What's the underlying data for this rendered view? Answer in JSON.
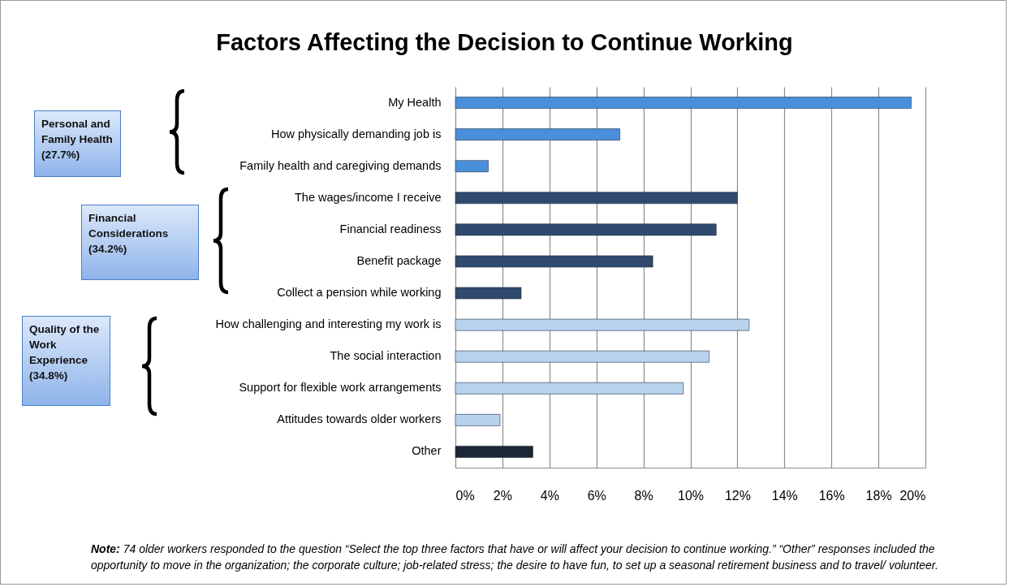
{
  "chart_data": {
    "type": "bar",
    "orientation": "horizontal",
    "title": "Factors Affecting the Decision to Continue Working",
    "categories": [
      "My Health",
      "How physically demanding job is",
      "Family health and caregiving demands",
      "The wages/income I receive",
      "Financial readiness",
      "Benefit package",
      "Collect a pension while working",
      "How challenging and interesting my work is",
      "The social interaction",
      "Support for flexible work arrangements",
      "Attitudes towards older workers",
      "Other"
    ],
    "values": [
      19.4,
      7.0,
      1.4,
      12.0,
      11.1,
      8.4,
      2.8,
      12.5,
      10.8,
      9.7,
      1.9,
      3.3
    ],
    "colors": [
      "#4a8fdb",
      "#4a8fdb",
      "#4a8fdb",
      "#2f4a6d",
      "#2f4a6d",
      "#2f4a6d",
      "#2f4a6d",
      "#b8d2ee",
      "#b8d2ee",
      "#b8d2ee",
      "#b8d2ee",
      "#1c2736"
    ],
    "xlim": [
      0,
      20
    ],
    "xticks": [
      {
        "value": 0,
        "label": "0%"
      },
      {
        "value": 2,
        "label": "2%"
      },
      {
        "value": 4,
        "label": "4%"
      },
      {
        "value": 6,
        "label": "6%"
      },
      {
        "value": 8,
        "label": "8%"
      },
      {
        "value": 10,
        "label": "10%"
      },
      {
        "value": 12,
        "label": "12%"
      },
      {
        "value": 14,
        "label": "14%"
      },
      {
        "value": 16,
        "label": "16%"
      },
      {
        "value": 18,
        "label": "18%"
      },
      {
        "value": 20,
        "label": "20%"
      }
    ],
    "grid": "x",
    "annotations": [
      "Personal and Family Health (27.7%)",
      "Financial Considerations (34.2%)",
      "Quality of the Work Experience (34.8%)",
      "Note: 74 older workers responded to the question “Select the top three factors that have or will affect your decision to continue working.” “Other” responses included the opportunity to move in the organization; the corporate culture; job-related stress; the desire to have fun, to set up a seasonal retirement business and to travel/ volunteer."
    ]
  }
}
